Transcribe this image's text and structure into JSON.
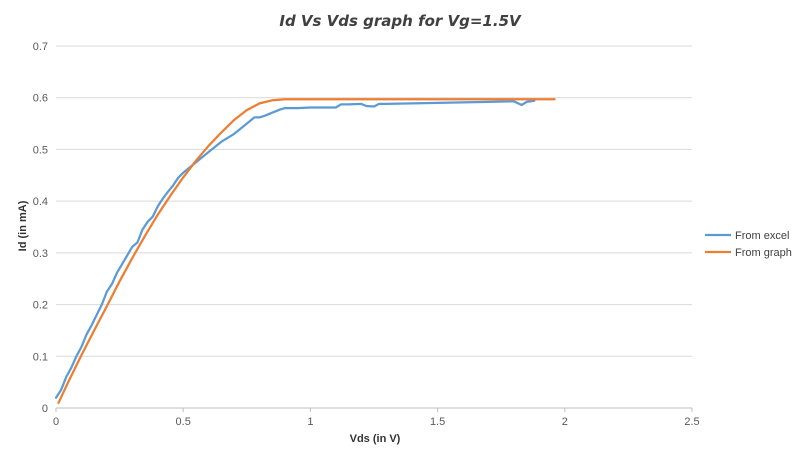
{
  "chart_data": {
    "type": "line",
    "title": "Id Vs Vds graph for Vg=1.5V",
    "xlabel": "Vds  (in V)",
    "ylabel": "Id (in mA)",
    "xlim": [
      0,
      2.5
    ],
    "ylim": [
      0,
      0.7
    ],
    "xticks": [
      0,
      0.5,
      1,
      1.5,
      2,
      2.5
    ],
    "yticks": [
      0,
      0.1,
      0.2,
      0.3,
      0.4,
      0.5,
      0.6,
      0.7
    ],
    "xtick_labels": [
      "0",
      "0.5",
      "1",
      "1.5",
      "2",
      "2.5"
    ],
    "ytick_labels": [
      "0",
      "0.1",
      "0.2",
      "0.3",
      "0.4",
      "0.5",
      "0.6",
      "0.7"
    ],
    "grid": "horizontal",
    "legend_position": "right",
    "series": [
      {
        "name": "From excel",
        "color": "#5b9bd5",
        "x": [
          0,
          0.02,
          0.04,
          0.06,
          0.08,
          0.1,
          0.12,
          0.14,
          0.16,
          0.18,
          0.2,
          0.22,
          0.24,
          0.26,
          0.28,
          0.3,
          0.32,
          0.34,
          0.36,
          0.38,
          0.4,
          0.42,
          0.44,
          0.46,
          0.48,
          0.5,
          0.55,
          0.6,
          0.65,
          0.7,
          0.75,
          0.78,
          0.8,
          0.82,
          0.85,
          0.88,
          0.9,
          0.95,
          1.0,
          1.05,
          1.1,
          1.12,
          1.15,
          1.2,
          1.22,
          1.25,
          1.27,
          1.3,
          1.4,
          1.5,
          1.6,
          1.7,
          1.8,
          1.83,
          1.85,
          1.88
        ],
        "y": [
          0.02,
          0.035,
          0.06,
          0.078,
          0.1,
          0.118,
          0.142,
          0.16,
          0.18,
          0.2,
          0.225,
          0.24,
          0.262,
          0.278,
          0.295,
          0.312,
          0.32,
          0.345,
          0.36,
          0.37,
          0.39,
          0.405,
          0.418,
          0.43,
          0.445,
          0.455,
          0.475,
          0.495,
          0.515,
          0.53,
          0.55,
          0.562,
          0.562,
          0.565,
          0.571,
          0.577,
          0.58,
          0.58,
          0.581,
          0.581,
          0.581,
          0.587,
          0.587,
          0.588,
          0.584,
          0.583,
          0.588,
          0.588,
          0.589,
          0.59,
          0.591,
          0.592,
          0.593,
          0.586,
          0.592,
          0.594
        ]
      },
      {
        "name": "From graph",
        "color": "#ed7d31",
        "x": [
          0.01,
          0.05,
          0.1,
          0.15,
          0.2,
          0.25,
          0.3,
          0.35,
          0.4,
          0.45,
          0.5,
          0.55,
          0.6,
          0.65,
          0.7,
          0.75,
          0.8,
          0.85,
          0.9,
          0.95,
          1.0,
          1.2,
          1.4,
          1.6,
          1.8,
          1.96
        ],
        "y": [
          0.01,
          0.052,
          0.102,
          0.15,
          0.197,
          0.245,
          0.29,
          0.333,
          0.374,
          0.411,
          0.446,
          0.478,
          0.507,
          0.533,
          0.557,
          0.576,
          0.589,
          0.595,
          0.597,
          0.597,
          0.597,
          0.597,
          0.597,
          0.597,
          0.597,
          0.597
        ]
      }
    ]
  }
}
